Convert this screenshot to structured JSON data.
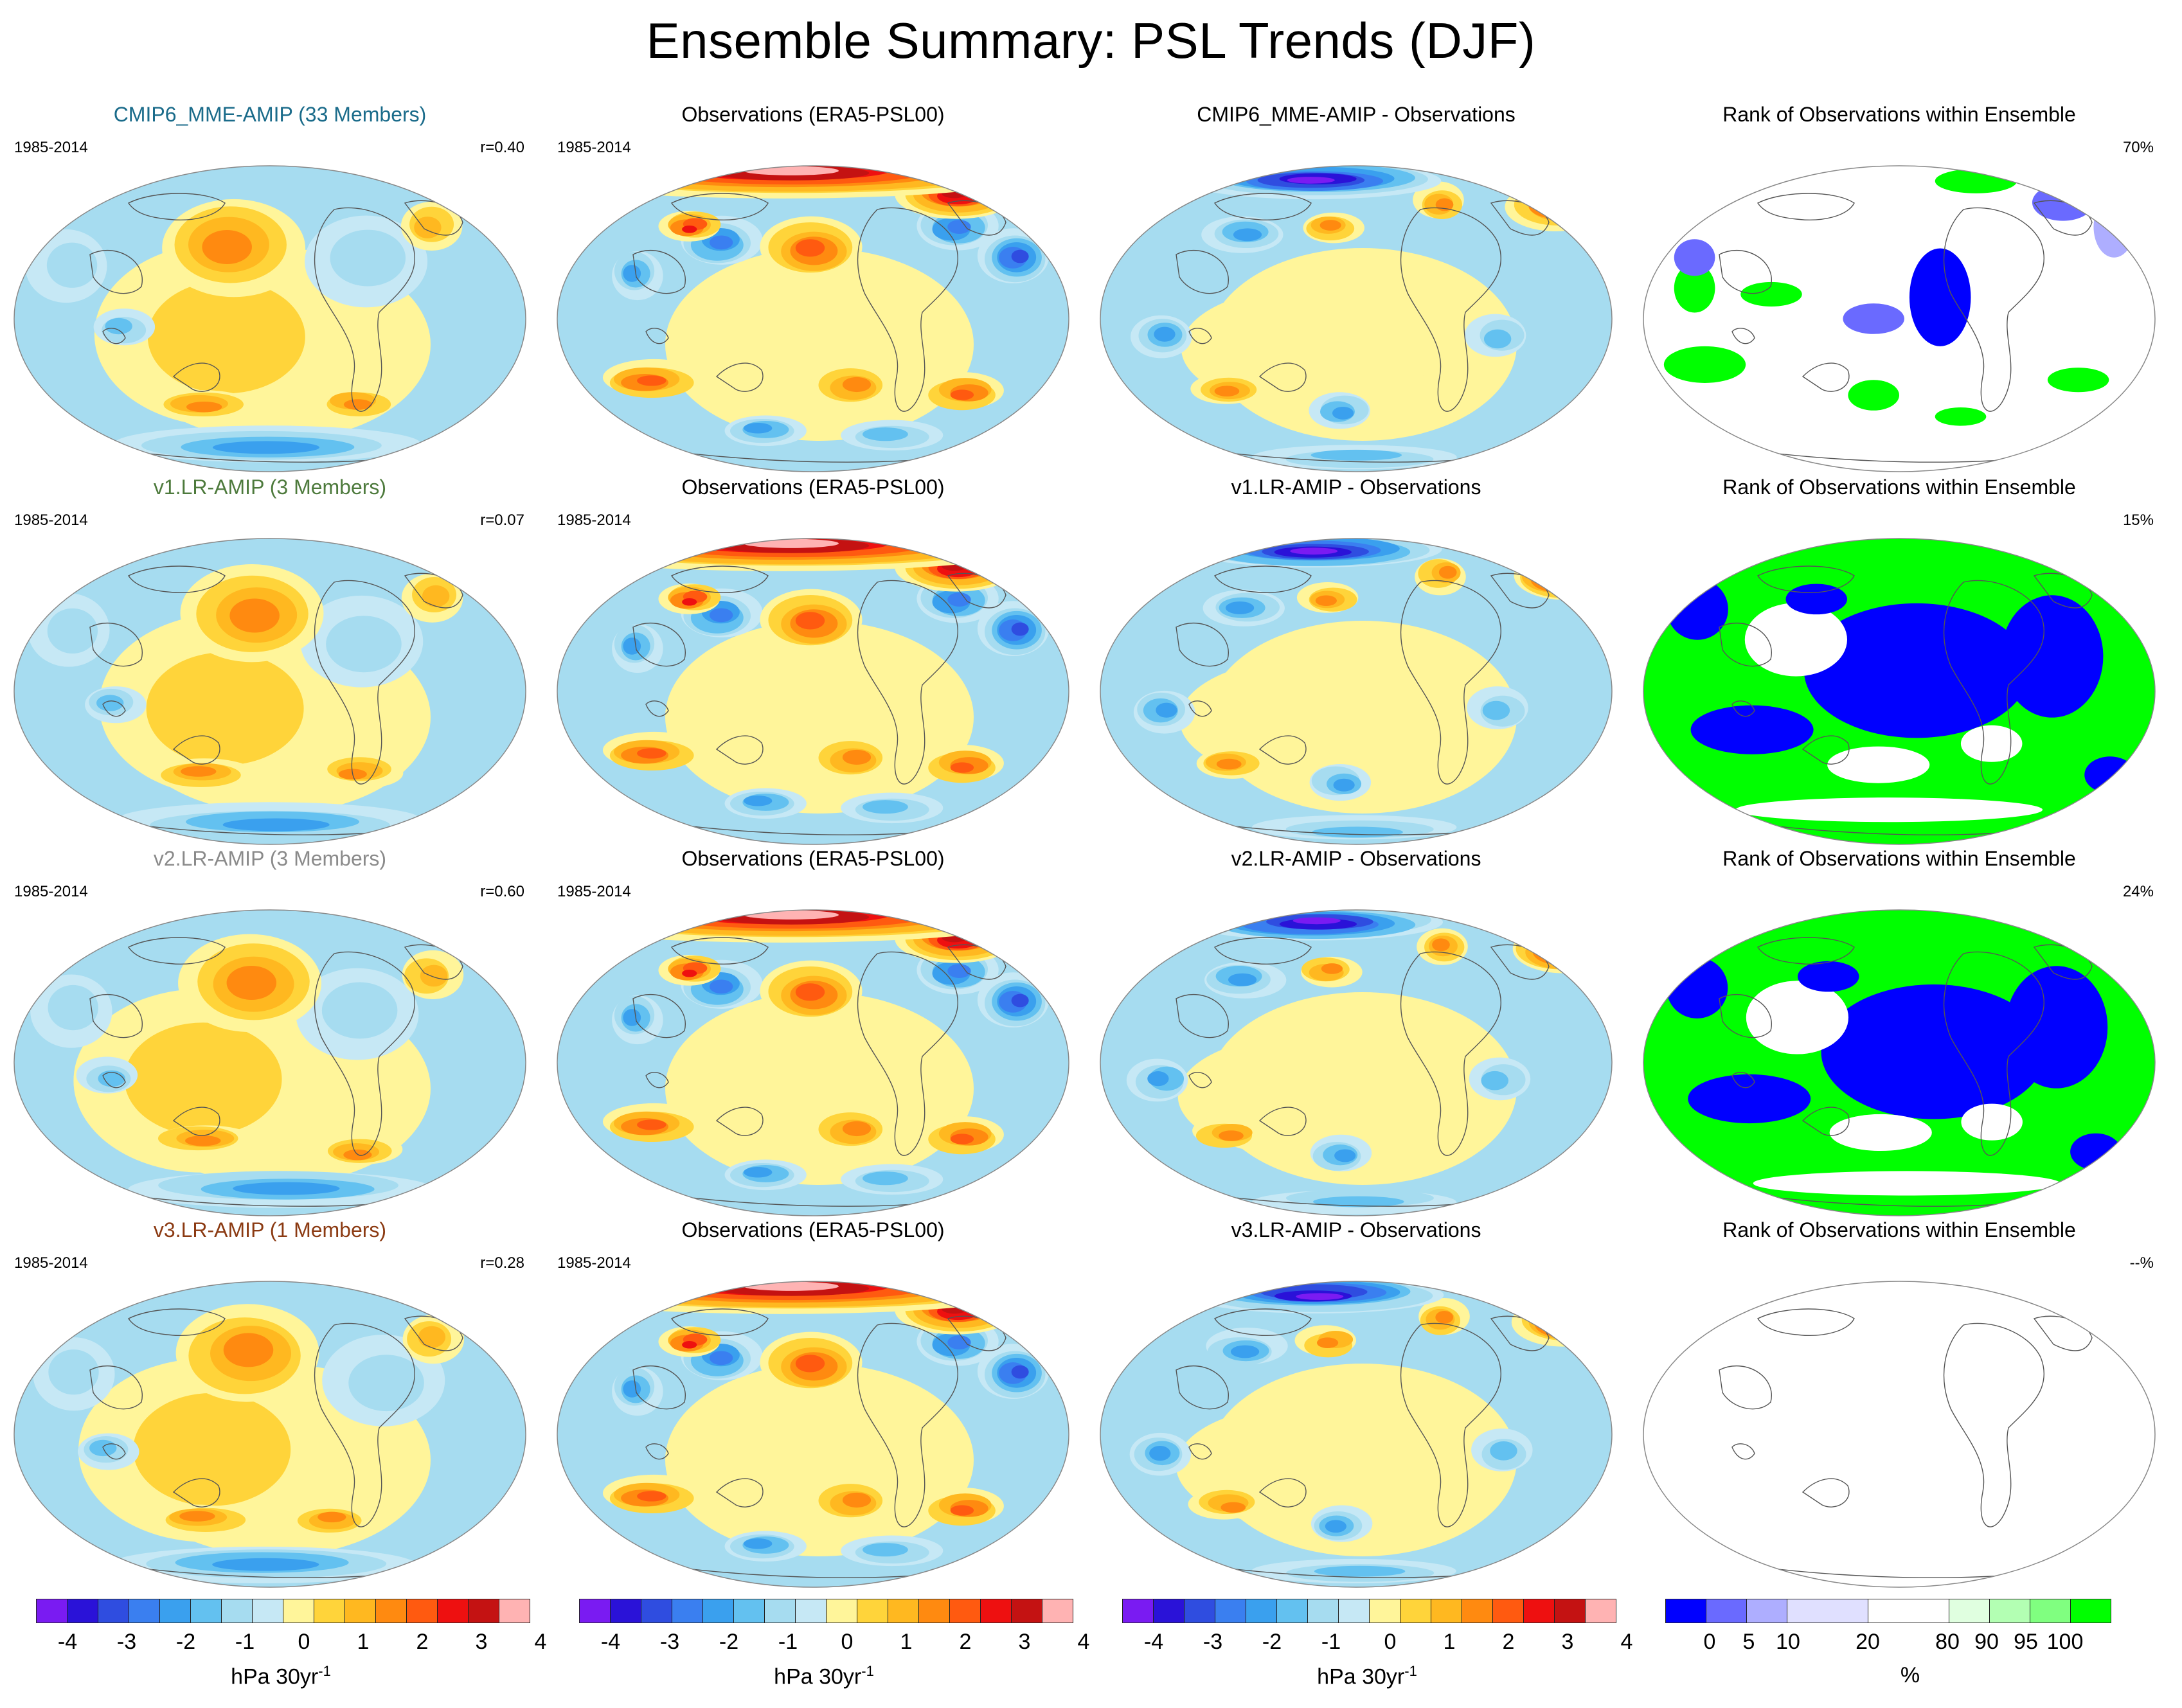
{
  "figure": {
    "title": "Ensemble Summary: PSL Trends (DJF)"
  },
  "colors": {
    "member_colors": [
      "#1a6b8a",
      "#4d7a3c",
      "#8a8a8a",
      "#8b3a12"
    ],
    "trend_palette": [
      "#7a1bf2",
      "#2a12d8",
      "#2f4de0",
      "#3a7ff0",
      "#3aa0ee",
      "#63c1f0",
      "#a6dcf0",
      "#c6e8f5",
      "#fff59a",
      "#ffd43a",
      "#ffb820",
      "#ff8a10",
      "#ff5a10",
      "#ee1010",
      "#c41212",
      "#ffb3b3"
    ],
    "rank_palette": [
      "#0000ff",
      "#6a6aff",
      "#aeaeff",
      "#e0e0ff",
      "#ffffff",
      "#e0ffe0",
      "#b3ffb3",
      "#80ff80",
      "#00ff00"
    ]
  },
  "rows": [
    {
      "model": {
        "title": "CMIP6_MME-AMIP (33 Members)",
        "period": "1985-2014",
        "stat": "r=0.40"
      },
      "obs": {
        "title": "Observations (ERA5-PSL00)",
        "period": "1985-2014"
      },
      "diff": {
        "title": "CMIP6_MME-AMIP - Observations"
      },
      "rank": {
        "title": "Rank of Observations within Ensemble",
        "stat": "70%"
      }
    },
    {
      "model": {
        "title": "v1.LR-AMIP (3 Members)",
        "period": "1985-2014",
        "stat": "r=0.07"
      },
      "obs": {
        "title": "Observations (ERA5-PSL00)",
        "period": "1985-2014"
      },
      "diff": {
        "title": "v1.LR-AMIP - Observations"
      },
      "rank": {
        "title": "Rank of Observations within Ensemble",
        "stat": "15%"
      }
    },
    {
      "model": {
        "title": "v2.LR-AMIP (3 Members)",
        "period": "1985-2014",
        "stat": "r=0.60"
      },
      "obs": {
        "title": "Observations (ERA5-PSL00)",
        "period": "1985-2014"
      },
      "diff": {
        "title": "v2.LR-AMIP - Observations"
      },
      "rank": {
        "title": "Rank of Observations within Ensemble",
        "stat": "24%"
      }
    },
    {
      "model": {
        "title": "v3.LR-AMIP (1 Members)",
        "period": "1985-2014",
        "stat": "r=0.28"
      },
      "obs": {
        "title": "Observations (ERA5-PSL00)",
        "period": "1985-2014"
      },
      "diff": {
        "title": "v3.LR-AMIP - Observations"
      },
      "rank": {
        "title": "Rank of Observations within Ensemble",
        "stat": "--%"
      }
    }
  ],
  "colorbars": {
    "trend": {
      "labels": [
        "-4",
        "-3",
        "-2",
        "-1",
        "0",
        "1",
        "2",
        "3",
        "4"
      ],
      "units": "hPa 30yr",
      "units_sup": "-1"
    },
    "rank": {
      "labels": [
        "0",
        "5",
        "10",
        "20",
        "80",
        "90",
        "95",
        "100"
      ],
      "units": "%"
    }
  }
}
